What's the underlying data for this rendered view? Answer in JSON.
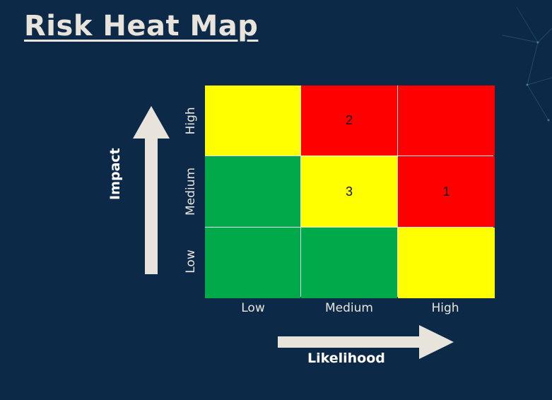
{
  "title": "Risk Heat Map",
  "axes": {
    "y_title": "Impact",
    "x_title": "Likelihood",
    "x_labels": [
      "Low",
      "Medium",
      "High"
    ],
    "y_labels": [
      "High",
      "Medium",
      "Low"
    ]
  },
  "colors": {
    "background": "#0c2a47",
    "green": "#00aa4b",
    "yellow": "#ffff00",
    "red": "#ff0000",
    "arrow": "#e8e4dc"
  },
  "cells": [
    [
      {
        "color": "yellow",
        "label": ""
      },
      {
        "color": "red",
        "label": "2"
      },
      {
        "color": "red",
        "label": ""
      }
    ],
    [
      {
        "color": "green",
        "label": ""
      },
      {
        "color": "yellow",
        "label": "3"
      },
      {
        "color": "red",
        "label": "1"
      }
    ],
    [
      {
        "color": "green",
        "label": ""
      },
      {
        "color": "green",
        "label": ""
      },
      {
        "color": "yellow",
        "label": ""
      }
    ]
  ]
}
